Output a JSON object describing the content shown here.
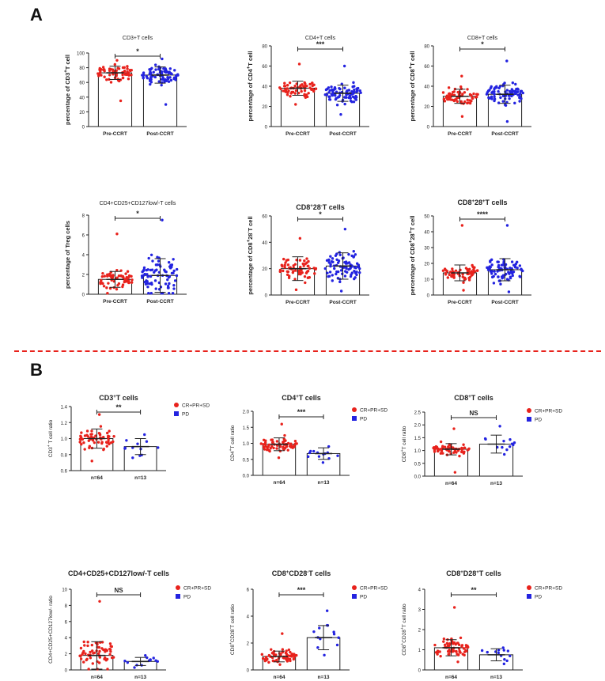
{
  "panel_labels": {
    "a": "A",
    "b": "B"
  },
  "colors": {
    "red": "#e8221c",
    "blue": "#2323e0",
    "divider": "#e8221c"
  },
  "chart_data": [
    {
      "type": "scatter",
      "section": "A",
      "title": "CD3+T cells",
      "title_bold": false,
      "ylabel_html": "percentage of CD3<tspan baseline-shift=\"super\" font-size=\"6\">+</tspan>T cell",
      "ylabel_text": "percentage of CD3+T cell",
      "ylim": [
        0,
        100
      ],
      "yticks": [
        "0",
        "20",
        "40",
        "60",
        "80",
        "100"
      ],
      "ytick_values": [
        0,
        20,
        40,
        60,
        80,
        100
      ],
      "categories": [
        "Pre-CCRT",
        "Post-CCRT"
      ],
      "means": [
        73,
        70
      ],
      "sd": [
        9,
        11
      ],
      "spread_min": [
        35,
        30
      ],
      "spread_max": [
        90,
        92
      ],
      "n": [
        64,
        80
      ],
      "significance": "*",
      "legend": null
    },
    {
      "type": "scatter",
      "section": "A",
      "title": "CD4+T cells",
      "title_bold": false,
      "ylabel_html": "percentage of CD4<tspan baseline-shift=\"super\" font-size=\"6\">+</tspan>T cell",
      "ylabel_text": "percentage of CD4+T cell",
      "ylim": [
        0,
        80
      ],
      "yticks": [
        "0",
        "20",
        "40",
        "60",
        "80"
      ],
      "ytick_values": [
        0,
        20,
        40,
        60,
        80
      ],
      "categories": [
        "Pre-CCRT",
        "Post-CCRT"
      ],
      "means": [
        38,
        33
      ],
      "sd": [
        7,
        8
      ],
      "spread_min": [
        22,
        12
      ],
      "spread_max": [
        62,
        60
      ],
      "n": [
        64,
        80
      ],
      "significance": "***",
      "legend": null
    },
    {
      "type": "scatter",
      "section": "A",
      "title": "CD8+T cells",
      "title_bold": false,
      "ylabel_html": "percentage of CD8<tspan baseline-shift=\"super\" font-size=\"6\">+</tspan>T cell",
      "ylabel_text": "percentage of CD8+T cell",
      "ylim": [
        0,
        80
      ],
      "yticks": [
        "0",
        "20",
        "40",
        "60",
        "80"
      ],
      "ytick_values": [
        0,
        20,
        40,
        60,
        80
      ],
      "categories": [
        "Pre-CCRT",
        "Post-CCRT"
      ],
      "means": [
        30,
        32
      ],
      "sd": [
        7,
        9
      ],
      "spread_min": [
        10,
        5
      ],
      "spread_max": [
        50,
        65
      ],
      "n": [
        64,
        80
      ],
      "significance": "*",
      "legend": null
    },
    {
      "type": "scatter",
      "section": "A",
      "title": "CD4+CD25+CD127low/-T cells",
      "title_bold": false,
      "ylabel_html": "percentage of Treg cells",
      "ylabel_text": "percentage of Treg cells",
      "ylim": [
        0,
        8
      ],
      "yticks": [
        "0",
        "2",
        "4",
        "6",
        "8"
      ],
      "ytick_values": [
        0,
        2,
        4,
        6,
        8
      ],
      "categories": [
        "Pre-CCRT",
        "Post-CCRT"
      ],
      "means": [
        1.5,
        1.9
      ],
      "sd": [
        0.8,
        1.7
      ],
      "spread_min": [
        0.1,
        0.1
      ],
      "spread_max": [
        6.1,
        7.5
      ],
      "n": [
        64,
        80
      ],
      "significance": "*",
      "legend": null
    },
    {
      "type": "scatter",
      "section": "A",
      "title": "CD8+28-T cells",
      "title_bold": true,
      "title_html": "CD8<tspan baseline-shift=\"super\" font-size=\"6\">+</tspan>28<tspan baseline-shift=\"super\" font-size=\"6\">-</tspan>T cells",
      "ylabel_html": "percentage of CD8<tspan baseline-shift=\"super\" font-size=\"6\">+</tspan>28<tspan baseline-shift=\"super\" font-size=\"6\">-</tspan>T cell",
      "ylabel_text": "percentage of CD8+28-T cell",
      "ylim": [
        0,
        60
      ],
      "yticks": [
        "0",
        "20",
        "40",
        "60"
      ],
      "ytick_values": [
        0,
        20,
        40,
        60
      ],
      "categories": [
        "Pre-CCRT",
        "Post-CCRT"
      ],
      "means": [
        20,
        22
      ],
      "sd": [
        9,
        10
      ],
      "spread_min": [
        4,
        3
      ],
      "spread_max": [
        43,
        50
      ],
      "n": [
        64,
        80
      ],
      "significance": "*",
      "legend": null
    },
    {
      "type": "scatter",
      "section": "A",
      "title": "CD8+28+T cells",
      "title_bold": true,
      "title_html": "CD8<tspan baseline-shift=\"super\" font-size=\"6\">+</tspan>28<tspan baseline-shift=\"super\" font-size=\"6\">+</tspan>T cells",
      "ylabel_html": "percentage of CD8<tspan baseline-shift=\"super\" font-size=\"6\">+</tspan>28<tspan baseline-shift=\"super\" font-size=\"6\">+</tspan>T cell",
      "ylabel_text": "percentage of CD8+28+T cell",
      "ylim": [
        0,
        50
      ],
      "yticks": [
        "0",
        "10",
        "20",
        "30",
        "40",
        "50"
      ],
      "ytick_values": [
        0,
        10,
        20,
        30,
        40,
        50
      ],
      "categories": [
        "Pre-CCRT",
        "Post-CCRT"
      ],
      "means": [
        14,
        16
      ],
      "sd": [
        5,
        7
      ],
      "spread_min": [
        3,
        2
      ],
      "spread_max": [
        44,
        44
      ],
      "n": [
        64,
        80
      ],
      "significance": "****",
      "legend": null
    },
    {
      "type": "scatter",
      "section": "B",
      "title": "CD3+T cells",
      "title_bold": true,
      "title_html": "CD3<tspan baseline-shift=\"super\" font-size=\"6\">+</tspan>T cells",
      "ylabel_html": "CD3<tspan baseline-shift=\"super\" font-size=\"5\">+</tspan> T cell ratio",
      "ylabel_text": "CD3+ T cell ratio",
      "ylim": [
        0.6,
        1.4
      ],
      "yticks": [
        "0.6",
        "0.8",
        "1.0",
        "1.2",
        "1.4"
      ],
      "ytick_values": [
        0.6,
        0.8,
        1.0,
        1.2,
        1.4
      ],
      "categories": [
        "n=64",
        "n=13"
      ],
      "means": [
        1.0,
        0.9
      ],
      "sd": [
        0.12,
        0.1
      ],
      "spread_min": [
        0.72,
        0.76
      ],
      "spread_max": [
        1.3,
        1.05
      ],
      "n": [
        64,
        13
      ],
      "significance": "**",
      "legend": [
        "CR+PR+SD",
        "PD"
      ]
    },
    {
      "type": "scatter",
      "section": "B",
      "title": "CD4+T cells",
      "title_bold": true,
      "title_html": "CD4<tspan baseline-shift=\"super\" font-size=\"6\">+</tspan>T cells",
      "ylabel_html": "CD4<tspan baseline-shift=\"super\" font-size=\"5\">+</tspan>T cell ratio",
      "ylabel_text": "CD4+T cell ratio",
      "ylim": [
        0,
        2.0
      ],
      "yticks": [
        "0.0",
        "0.5",
        "1.0",
        "1.5",
        "2.0"
      ],
      "ytick_values": [
        0,
        0.5,
        1.0,
        1.5,
        2.0
      ],
      "categories": [
        "n=64",
        "n=13"
      ],
      "means": [
        0.97,
        0.68
      ],
      "sd": [
        0.2,
        0.18
      ],
      "spread_min": [
        0.55,
        0.4
      ],
      "spread_max": [
        1.6,
        0.9
      ],
      "n": [
        64,
        13
      ],
      "significance": "***",
      "legend": [
        "CR+PR+SD",
        "PD"
      ]
    },
    {
      "type": "scatter",
      "section": "B",
      "title": "CD8+T cells",
      "title_bold": true,
      "title_html": "CD8<tspan baseline-shift=\"super\" font-size=\"6\">+</tspan>T cells",
      "ylabel_html": "CD8<tspan baseline-shift=\"super\" font-size=\"5\">+</tspan>T cell ratio",
      "ylabel_text": "CD8+T cell ratio",
      "ylim": [
        0,
        2.5
      ],
      "yticks": [
        "0.0",
        "0.5",
        "1.0",
        "1.5",
        "2.0",
        "2.5"
      ],
      "ytick_values": [
        0,
        0.5,
        1.0,
        1.5,
        2.0,
        2.5
      ],
      "categories": [
        "n=64",
        "n=13"
      ],
      "means": [
        1.05,
        1.25
      ],
      "sd": [
        0.22,
        0.35
      ],
      "spread_min": [
        0.15,
        0.85
      ],
      "spread_max": [
        1.85,
        1.95
      ],
      "n": [
        64,
        13
      ],
      "significance": "NS",
      "legend": [
        "CR+PR+SD",
        "PD"
      ]
    },
    {
      "type": "scatter",
      "section": "B",
      "title": "CD4+CD25+CD127low/-T cells",
      "title_bold": true,
      "ylabel_html": "CD4+CD25+CD127low/- ratio",
      "ylabel_text": "CD4+CD25+CD127low/- ratio",
      "ylim": [
        0,
        10
      ],
      "yticks": [
        "0",
        "2",
        "4",
        "6",
        "8",
        "10"
      ],
      "ytick_values": [
        0,
        2,
        4,
        6,
        8,
        10
      ],
      "categories": [
        "n=64",
        "n=13"
      ],
      "means": [
        1.8,
        1.05
      ],
      "sd": [
        1.7,
        0.5
      ],
      "spread_min": [
        0.1,
        0.3
      ],
      "spread_max": [
        8.5,
        1.8
      ],
      "n": [
        64,
        13
      ],
      "significance": "NS",
      "legend": [
        "CR+PR+SD",
        "PD"
      ]
    },
    {
      "type": "scatter",
      "section": "B",
      "title": "CD8+CD28-T cells",
      "title_bold": true,
      "title_html": "CD8<tspan baseline-shift=\"super\" font-size=\"6\">+</tspan>CD28<tspan baseline-shift=\"super\" font-size=\"6\">-</tspan>T cells",
      "ylabel_html": "CD8<tspan baseline-shift=\"super\" font-size=\"5\">+</tspan>CD28<tspan baseline-shift=\"super\" font-size=\"5\">-</tspan>T cell ratio",
      "ylabel_text": "CD8+CD28-T cell ratio",
      "ylim": [
        0,
        6
      ],
      "yticks": [
        "0",
        "2",
        "4",
        "6"
      ],
      "ytick_values": [
        0,
        2,
        4,
        6
      ],
      "categories": [
        "n=64",
        "n=13"
      ],
      "means": [
        1.0,
        2.4
      ],
      "sd": [
        0.4,
        0.9
      ],
      "spread_min": [
        0.4,
        1.1
      ],
      "spread_max": [
        2.7,
        4.4
      ],
      "n": [
        64,
        13
      ],
      "significance": "***",
      "legend": [
        "CR+PR+SD",
        "PD"
      ]
    },
    {
      "type": "scatter",
      "section": "B",
      "title": "CD8+D28+T cells",
      "title_bold": true,
      "title_html": "CD8<tspan baseline-shift=\"super\" font-size=\"6\">+</tspan>D28<tspan baseline-shift=\"super\" font-size=\"6\">+</tspan>T cells",
      "ylabel_html": "CD8<tspan baseline-shift=\"super\" font-size=\"5\">+</tspan>CD28<tspan baseline-shift=\"super\" font-size=\"5\">+</tspan>T cell ratio",
      "ylabel_text": "CD8+CD28+T cell ratio",
      "ylim": [
        0,
        4
      ],
      "yticks": [
        "0",
        "1",
        "2",
        "3",
        "4"
      ],
      "ytick_values": [
        0,
        1,
        2,
        3,
        4
      ],
      "categories": [
        "n=64",
        "n=13"
      ],
      "means": [
        1.1,
        0.75
      ],
      "sd": [
        0.4,
        0.3
      ],
      "spread_min": [
        0.4,
        0.3
      ],
      "spread_max": [
        3.1,
        1.1
      ],
      "n": [
        64,
        13
      ],
      "significance": "**",
      "legend": [
        "CR+PR+SD",
        "PD"
      ]
    }
  ]
}
